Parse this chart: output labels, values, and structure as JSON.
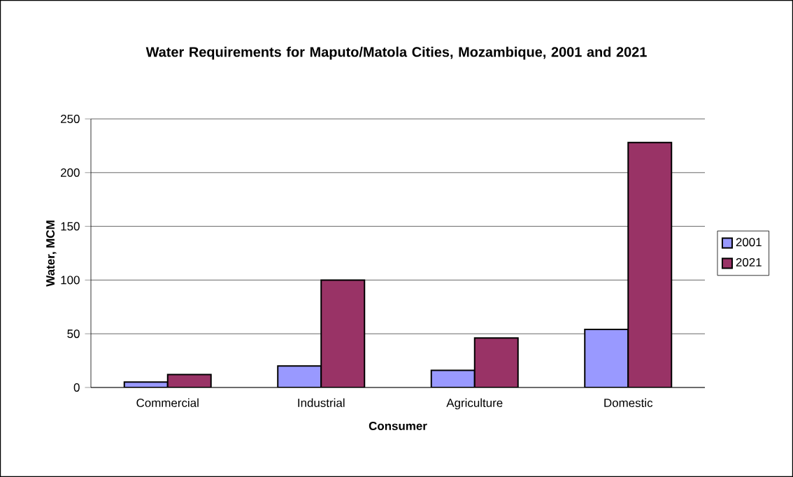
{
  "chart_data": {
    "type": "bar",
    "title": "Water Requirements for Maputo/Matola Cities, Mozambique, 2001 and 2021",
    "xlabel": "Consumer",
    "ylabel": "Water, MCM",
    "categories": [
      "Commercial",
      "Industrial",
      "Agriculture",
      "Domestic"
    ],
    "series": [
      {
        "name": "2001",
        "color": "#9999ff",
        "values": [
          5,
          20,
          16,
          54
        ]
      },
      {
        "name": "2021",
        "color": "#993366",
        "values": [
          12,
          100,
          46,
          228
        ]
      }
    ],
    "ylim": [
      0,
      250
    ],
    "yticks": [
      0,
      50,
      100,
      150,
      200,
      250
    ],
    "grid": "y",
    "legend": "right"
  }
}
